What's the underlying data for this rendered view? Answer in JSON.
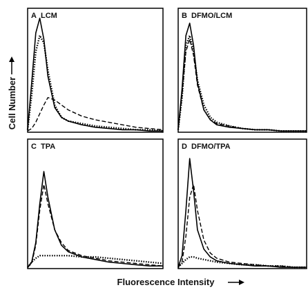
{
  "y_label": "Cell Number",
  "x_label": "Fluorescence Intensity",
  "chart_data": [
    {
      "type": "line",
      "letter": "A",
      "title": "LCM",
      "xlim": [
        0,
        100
      ],
      "ylim": [
        0,
        100
      ],
      "x": [
        0,
        3,
        6,
        9,
        12,
        15,
        20,
        25,
        30,
        40,
        50,
        60,
        70,
        80,
        90,
        100
      ],
      "series": [
        {
          "dash": "solid",
          "color": "#000",
          "values": [
            2,
            40,
            80,
            92,
            75,
            45,
            20,
            12,
            9,
            6,
            4,
            3,
            2,
            2,
            1,
            1
          ]
        },
        {
          "dash": "dotted",
          "color": "#000",
          "values": [
            2,
            30,
            65,
            78,
            72,
            50,
            22,
            12,
            9,
            7,
            5,
            4,
            3,
            2,
            2,
            1
          ]
        },
        {
          "dash": "dashed",
          "color": "#000",
          "values": [
            1,
            3,
            8,
            15,
            22,
            28,
            26,
            22,
            18,
            13,
            10,
            8,
            6,
            4,
            3,
            2
          ]
        }
      ]
    },
    {
      "type": "line",
      "letter": "B",
      "title": "DFMO/LCM",
      "xlim": [
        0,
        100
      ],
      "ylim": [
        0,
        100
      ],
      "x": [
        0,
        3,
        6,
        9,
        12,
        15,
        20,
        25,
        30,
        40,
        50,
        60,
        70,
        80,
        90,
        100
      ],
      "series": [
        {
          "dash": "solid",
          "color": "#000",
          "values": [
            2,
            35,
            78,
            88,
            70,
            40,
            18,
            10,
            6,
            4,
            3,
            2,
            2,
            1,
            1,
            1
          ]
        },
        {
          "dash": "dashed",
          "color": "#000",
          "values": [
            2,
            30,
            65,
            75,
            62,
            38,
            18,
            10,
            7,
            5,
            3,
            2,
            2,
            1,
            1,
            1
          ]
        },
        {
          "dash": "dotted",
          "color": "#000",
          "values": [
            2,
            28,
            70,
            78,
            65,
            42,
            22,
            12,
            8,
            5,
            3,
            2,
            2,
            1,
            1,
            1
          ]
        }
      ]
    },
    {
      "type": "line",
      "letter": "C",
      "title": "TPA",
      "xlim": [
        0,
        100
      ],
      "ylim": [
        0,
        100
      ],
      "x": [
        0,
        3,
        6,
        9,
        12,
        15,
        20,
        25,
        30,
        40,
        50,
        60,
        70,
        80,
        90,
        100
      ],
      "series": [
        {
          "dash": "solid",
          "color": "#000",
          "values": [
            1,
            5,
            20,
            50,
            75,
            55,
            30,
            18,
            13,
            9,
            7,
            5,
            4,
            3,
            2,
            2
          ]
        },
        {
          "dash": "dashed",
          "color": "#000",
          "values": [
            1,
            4,
            18,
            45,
            65,
            50,
            30,
            20,
            14,
            10,
            8,
            6,
            5,
            4,
            3,
            2
          ]
        },
        {
          "dash": "dotted",
          "color": "#000",
          "values": [
            1,
            5,
            8,
            10,
            10,
            10,
            10,
            10,
            10,
            9,
            9,
            8,
            7,
            6,
            5,
            4
          ]
        }
      ]
    },
    {
      "type": "line",
      "letter": "D",
      "title": "DFMO/TPA",
      "xlim": [
        0,
        100
      ],
      "ylim": [
        0,
        100
      ],
      "x": [
        0,
        3,
        6,
        9,
        12,
        15,
        20,
        25,
        30,
        40,
        50,
        60,
        70,
        80,
        90,
        100
      ],
      "series": [
        {
          "dash": "solid",
          "color": "#000",
          "values": [
            1,
            10,
            45,
            85,
            60,
            30,
            15,
            9,
            6,
            4,
            3,
            2,
            2,
            1,
            1,
            1
          ]
        },
        {
          "dash": "dashed",
          "color": "#000",
          "values": [
            1,
            5,
            25,
            55,
            65,
            45,
            22,
            12,
            8,
            5,
            4,
            3,
            2,
            2,
            1,
            1
          ]
        },
        {
          "dash": "dotted",
          "color": "#000",
          "values": [
            1,
            4,
            7,
            9,
            9,
            8,
            7,
            6,
            5,
            4,
            3,
            3,
            2,
            2,
            1,
            1
          ]
        }
      ]
    }
  ]
}
